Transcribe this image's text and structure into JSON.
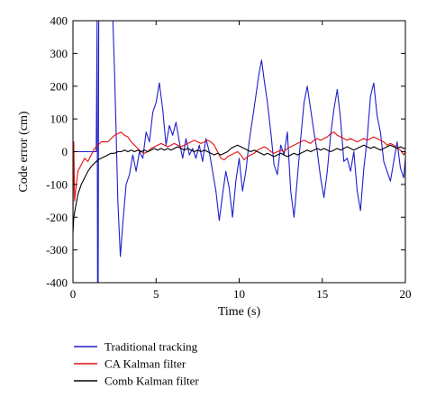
{
  "chart_data": {
    "type": "line",
    "title": "",
    "xlabel": "Time (s)",
    "ylabel": "Code error (cm)",
    "xlim": [
      0,
      20
    ],
    "ylim": [
      -400,
      400
    ],
    "xticks": [
      0,
      5,
      10,
      15,
      20
    ],
    "yticks": [
      -400,
      -300,
      -200,
      -100,
      0,
      100,
      200,
      300,
      400
    ],
    "grid": false,
    "legend_position": "below",
    "series": [
      {
        "name": "Traditional tracking",
        "color": "#1f1fcc",
        "points": [
          [
            0,
            0
          ],
          [
            0.25,
            0
          ],
          [
            0.5,
            0
          ],
          [
            0.75,
            0
          ],
          [
            1.0,
            0
          ],
          [
            1.25,
            0
          ],
          [
            1.4,
            0
          ],
          [
            1.45,
            400
          ],
          [
            1.48,
            -400
          ],
          [
            1.52,
            -400
          ],
          [
            1.55,
            400
          ],
          [
            1.8,
            400
          ],
          [
            2.0,
            400
          ],
          [
            2.3,
            400
          ],
          [
            2.4,
            400
          ],
          [
            2.5,
            250
          ],
          [
            2.6,
            50
          ],
          [
            2.7,
            -150
          ],
          [
            2.85,
            -320
          ],
          [
            3.0,
            -220
          ],
          [
            3.2,
            -100
          ],
          [
            3.4,
            -70
          ],
          [
            3.6,
            -10
          ],
          [
            3.8,
            -60
          ],
          [
            4.0,
            0
          ],
          [
            4.2,
            -20
          ],
          [
            4.4,
            60
          ],
          [
            4.6,
            30
          ],
          [
            4.8,
            120
          ],
          [
            5.0,
            150
          ],
          [
            5.2,
            210
          ],
          [
            5.4,
            130
          ],
          [
            5.6,
            20
          ],
          [
            5.8,
            80
          ],
          [
            6.0,
            50
          ],
          [
            6.2,
            90
          ],
          [
            6.4,
            30
          ],
          [
            6.6,
            -20
          ],
          [
            6.8,
            40
          ],
          [
            7.0,
            -10
          ],
          [
            7.2,
            10
          ],
          [
            7.4,
            -20
          ],
          [
            7.6,
            20
          ],
          [
            7.8,
            -30
          ],
          [
            8.0,
            40
          ],
          [
            8.2,
            0
          ],
          [
            8.4,
            -60
          ],
          [
            8.6,
            -120
          ],
          [
            8.8,
            -210
          ],
          [
            9.0,
            -130
          ],
          [
            9.2,
            -60
          ],
          [
            9.4,
            -110
          ],
          [
            9.6,
            -200
          ],
          [
            9.8,
            -90
          ],
          [
            10.0,
            -20
          ],
          [
            10.2,
            -120
          ],
          [
            10.4,
            -60
          ],
          [
            10.6,
            30
          ],
          [
            10.8,
            100
          ],
          [
            11.0,
            170
          ],
          [
            11.2,
            240
          ],
          [
            11.35,
            280
          ],
          [
            11.5,
            220
          ],
          [
            11.7,
            150
          ],
          [
            11.9,
            60
          ],
          [
            12.1,
            -40
          ],
          [
            12.3,
            -70
          ],
          [
            12.5,
            20
          ],
          [
            12.7,
            -10
          ],
          [
            12.9,
            60
          ],
          [
            13.1,
            -120
          ],
          [
            13.3,
            -200
          ],
          [
            13.5,
            -80
          ],
          [
            13.7,
            40
          ],
          [
            13.9,
            150
          ],
          [
            14.1,
            200
          ],
          [
            14.3,
            130
          ],
          [
            14.5,
            60
          ],
          [
            14.7,
            0
          ],
          [
            14.9,
            -80
          ],
          [
            15.1,
            -140
          ],
          [
            15.3,
            -60
          ],
          [
            15.5,
            50
          ],
          [
            15.7,
            130
          ],
          [
            15.9,
            190
          ],
          [
            16.1,
            100
          ],
          [
            16.3,
            -30
          ],
          [
            16.5,
            -20
          ],
          [
            16.7,
            -60
          ],
          [
            16.9,
            0
          ],
          [
            17.1,
            -120
          ],
          [
            17.3,
            -180
          ],
          [
            17.5,
            -50
          ],
          [
            17.7,
            40
          ],
          [
            17.9,
            170
          ],
          [
            18.1,
            210
          ],
          [
            18.3,
            110
          ],
          [
            18.5,
            60
          ],
          [
            18.7,
            -30
          ],
          [
            18.9,
            -60
          ],
          [
            19.1,
            -90
          ],
          [
            19.3,
            -30
          ],
          [
            19.5,
            30
          ],
          [
            19.7,
            -50
          ],
          [
            19.9,
            -80
          ],
          [
            20.0,
            -20
          ]
        ]
      },
      {
        "name": "CA Kalman filter",
        "color": "#e01010",
        "points": [
          [
            0,
            -200
          ],
          [
            0.05,
            30
          ],
          [
            0.1,
            -150
          ],
          [
            0.2,
            -100
          ],
          [
            0.3,
            -60
          ],
          [
            0.5,
            -40
          ],
          [
            0.7,
            -20
          ],
          [
            0.9,
            -30
          ],
          [
            1.1,
            -10
          ],
          [
            1.3,
            10
          ],
          [
            1.5,
            20
          ],
          [
            1.7,
            30
          ],
          [
            1.9,
            30
          ],
          [
            2.1,
            30
          ],
          [
            2.3,
            40
          ],
          [
            2.5,
            50
          ],
          [
            2.7,
            55
          ],
          [
            2.9,
            60
          ],
          [
            3.1,
            50
          ],
          [
            3.3,
            45
          ],
          [
            3.5,
            30
          ],
          [
            3.7,
            20
          ],
          [
            3.9,
            10
          ],
          [
            4.1,
            0
          ],
          [
            4.3,
            -5
          ],
          [
            4.5,
            0
          ],
          [
            4.7,
            10
          ],
          [
            4.9,
            15
          ],
          [
            5.1,
            20
          ],
          [
            5.3,
            25
          ],
          [
            5.5,
            20
          ],
          [
            5.7,
            15
          ],
          [
            5.9,
            20
          ],
          [
            6.1,
            25
          ],
          [
            6.3,
            20
          ],
          [
            6.5,
            15
          ],
          [
            6.7,
            20
          ],
          [
            6.9,
            25
          ],
          [
            7.1,
            30
          ],
          [
            7.3,
            35
          ],
          [
            7.5,
            30
          ],
          [
            7.7,
            25
          ],
          [
            7.9,
            30
          ],
          [
            8.1,
            35
          ],
          [
            8.3,
            30
          ],
          [
            8.5,
            20
          ],
          [
            8.7,
            0
          ],
          [
            8.9,
            -20
          ],
          [
            9.1,
            -25
          ],
          [
            9.3,
            -15
          ],
          [
            9.5,
            -10
          ],
          [
            9.7,
            -5
          ],
          [
            9.9,
            0
          ],
          [
            10.1,
            -10
          ],
          [
            10.3,
            -25
          ],
          [
            10.5,
            -15
          ],
          [
            10.7,
            -10
          ],
          [
            10.9,
            -5
          ],
          [
            11.1,
            5
          ],
          [
            11.3,
            10
          ],
          [
            11.5,
            15
          ],
          [
            11.7,
            10
          ],
          [
            11.9,
            0
          ],
          [
            12.1,
            -5
          ],
          [
            12.3,
            0
          ],
          [
            12.5,
            5
          ],
          [
            12.7,
            0
          ],
          [
            12.9,
            10
          ],
          [
            13.1,
            15
          ],
          [
            13.3,
            20
          ],
          [
            13.5,
            25
          ],
          [
            13.7,
            30
          ],
          [
            13.9,
            35
          ],
          [
            14.1,
            30
          ],
          [
            14.3,
            25
          ],
          [
            14.5,
            35
          ],
          [
            14.7,
            40
          ],
          [
            14.9,
            35
          ],
          [
            15.1,
            40
          ],
          [
            15.3,
            45
          ],
          [
            15.5,
            55
          ],
          [
            15.7,
            60
          ],
          [
            15.9,
            50
          ],
          [
            16.1,
            45
          ],
          [
            16.3,
            40
          ],
          [
            16.5,
            35
          ],
          [
            16.7,
            40
          ],
          [
            16.9,
            35
          ],
          [
            17.1,
            30
          ],
          [
            17.3,
            35
          ],
          [
            17.5,
            40
          ],
          [
            17.7,
            35
          ],
          [
            17.9,
            40
          ],
          [
            18.1,
            45
          ],
          [
            18.3,
            40
          ],
          [
            18.5,
            35
          ],
          [
            18.7,
            30
          ],
          [
            18.9,
            20
          ],
          [
            19.1,
            25
          ],
          [
            19.3,
            20
          ],
          [
            19.5,
            10
          ],
          [
            19.7,
            5
          ],
          [
            19.9,
            -10
          ],
          [
            20.0,
            0
          ]
        ]
      },
      {
        "name": "Comb Kalman filter",
        "color": "#000000",
        "points": [
          [
            0,
            -250
          ],
          [
            0.05,
            -200
          ],
          [
            0.15,
            -170
          ],
          [
            0.3,
            -130
          ],
          [
            0.5,
            -100
          ],
          [
            0.7,
            -80
          ],
          [
            0.9,
            -60
          ],
          [
            1.1,
            -45
          ],
          [
            1.3,
            -35
          ],
          [
            1.5,
            -25
          ],
          [
            1.7,
            -20
          ],
          [
            1.9,
            -15
          ],
          [
            2.1,
            -10
          ],
          [
            2.3,
            -5
          ],
          [
            2.5,
            -5
          ],
          [
            2.7,
            0
          ],
          [
            2.9,
            0
          ],
          [
            3.1,
            5
          ],
          [
            3.3,
            0
          ],
          [
            3.5,
            5
          ],
          [
            3.7,
            0
          ],
          [
            3.9,
            5
          ],
          [
            4.1,
            0
          ],
          [
            4.3,
            5
          ],
          [
            4.5,
            0
          ],
          [
            4.7,
            5
          ],
          [
            4.9,
            10
          ],
          [
            5.1,
            5
          ],
          [
            5.3,
            10
          ],
          [
            5.5,
            5
          ],
          [
            5.7,
            10
          ],
          [
            5.9,
            5
          ],
          [
            6.1,
            10
          ],
          [
            6.3,
            15
          ],
          [
            6.5,
            10
          ],
          [
            6.7,
            5
          ],
          [
            6.9,
            10
          ],
          [
            7.1,
            5
          ],
          [
            7.3,
            0
          ],
          [
            7.5,
            5
          ],
          [
            7.7,
            0
          ],
          [
            7.9,
            5
          ],
          [
            8.1,
            0
          ],
          [
            8.3,
            -5
          ],
          [
            8.5,
            -10
          ],
          [
            8.7,
            -5
          ],
          [
            8.9,
            -10
          ],
          [
            9.1,
            -5
          ],
          [
            9.3,
            0
          ],
          [
            9.5,
            10
          ],
          [
            9.7,
            15
          ],
          [
            9.9,
            20
          ],
          [
            10.1,
            15
          ],
          [
            10.3,
            10
          ],
          [
            10.5,
            5
          ],
          [
            10.7,
            0
          ],
          [
            10.9,
            5
          ],
          [
            11.1,
            0
          ],
          [
            11.3,
            -5
          ],
          [
            11.5,
            -10
          ],
          [
            11.7,
            -5
          ],
          [
            11.9,
            -10
          ],
          [
            12.1,
            -15
          ],
          [
            12.3,
            -10
          ],
          [
            12.5,
            -5
          ],
          [
            12.7,
            -10
          ],
          [
            12.9,
            -15
          ],
          [
            13.1,
            -10
          ],
          [
            13.3,
            -5
          ],
          [
            13.5,
            -10
          ],
          [
            13.7,
            -5
          ],
          [
            13.9,
            0
          ],
          [
            14.1,
            5
          ],
          [
            14.3,
            0
          ],
          [
            14.5,
            5
          ],
          [
            14.7,
            10
          ],
          [
            14.9,
            5
          ],
          [
            15.1,
            10
          ],
          [
            15.3,
            5
          ],
          [
            15.5,
            0
          ],
          [
            15.7,
            5
          ],
          [
            15.9,
            10
          ],
          [
            16.1,
            5
          ],
          [
            16.3,
            10
          ],
          [
            16.5,
            15
          ],
          [
            16.7,
            10
          ],
          [
            16.9,
            5
          ],
          [
            17.1,
            10
          ],
          [
            17.3,
            15
          ],
          [
            17.5,
            20
          ],
          [
            17.7,
            15
          ],
          [
            17.9,
            10
          ],
          [
            18.1,
            15
          ],
          [
            18.3,
            10
          ],
          [
            18.5,
            5
          ],
          [
            18.7,
            10
          ],
          [
            18.9,
            15
          ],
          [
            19.1,
            20
          ],
          [
            19.3,
            15
          ],
          [
            19.5,
            10
          ],
          [
            19.7,
            15
          ],
          [
            19.9,
            10
          ],
          [
            20.0,
            10
          ]
        ]
      }
    ]
  }
}
